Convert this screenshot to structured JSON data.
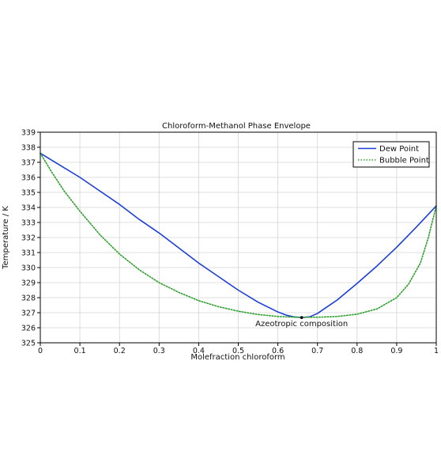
{
  "chart_data": {
    "type": "line",
    "title": "Chloroform-Methanol Phase Envelope",
    "xlabel": "Molefraction chloroform",
    "ylabel": "Temperature / K",
    "xlim": [
      0,
      1
    ],
    "ylim": [
      325,
      339
    ],
    "xticks": [
      "0",
      "0.1",
      "0.2",
      "0.3",
      "0.4",
      "0.5",
      "0.6",
      "0.7",
      "0.8",
      "0.9",
      "1"
    ],
    "yticks": [
      "325",
      "326",
      "327",
      "328",
      "329",
      "330",
      "331",
      "332",
      "333",
      "334",
      "335",
      "336",
      "337",
      "338",
      "339"
    ],
    "grid": true,
    "legend_position": "top-right",
    "series": [
      {
        "name": "Dew Point",
        "color": "#1a3ed8",
        "style": "solid",
        "x": [
          0,
          0.05,
          0.1,
          0.15,
          0.2,
          0.25,
          0.3,
          0.35,
          0.4,
          0.45,
          0.5,
          0.55,
          0.6,
          0.62,
          0.64,
          0.66,
          0.68,
          0.7,
          0.75,
          0.8,
          0.85,
          0.9,
          0.95,
          1.0
        ],
        "y": [
          337.6,
          336.8,
          336.0,
          335.1,
          334.2,
          333.2,
          332.3,
          331.3,
          330.3,
          329.4,
          328.5,
          327.7,
          327.05,
          326.85,
          326.72,
          326.68,
          326.72,
          326.95,
          327.85,
          328.95,
          330.1,
          331.35,
          332.7,
          334.1
        ]
      },
      {
        "name": "Bubble Point",
        "color": "#2ca02c",
        "style": "dotted",
        "x": [
          0,
          0.03,
          0.06,
          0.1,
          0.15,
          0.2,
          0.25,
          0.3,
          0.35,
          0.4,
          0.45,
          0.5,
          0.55,
          0.6,
          0.65,
          0.7,
          0.75,
          0.8,
          0.85,
          0.9,
          0.93,
          0.96,
          0.98,
          1.0
        ],
        "y": [
          337.6,
          336.3,
          335.1,
          333.75,
          332.2,
          330.9,
          329.85,
          329.0,
          328.35,
          327.8,
          327.4,
          327.1,
          326.88,
          326.75,
          326.7,
          326.7,
          326.75,
          326.9,
          327.25,
          328.0,
          328.9,
          330.3,
          332.0,
          334.1
        ]
      }
    ],
    "annotations": [
      {
        "text": "Azeotropic composition",
        "x": 0.66,
        "y": 326.68
      }
    ]
  }
}
